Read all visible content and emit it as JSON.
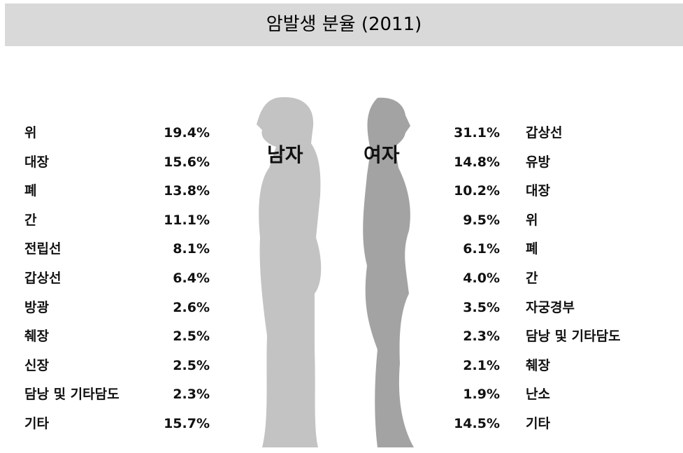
{
  "header": {
    "title": "암발생 분율 (2011)"
  },
  "male": {
    "label": "남자",
    "rows": [
      {
        "name": "위",
        "value": "19.4%"
      },
      {
        "name": "대장",
        "value": "15.6%"
      },
      {
        "name": "폐",
        "value": "13.8%"
      },
      {
        "name": "간",
        "value": "11.1%"
      },
      {
        "name": "전립선",
        "value": "8.1%"
      },
      {
        "name": "갑상선",
        "value": "6.4%"
      },
      {
        "name": "방광",
        "value": "2.6%"
      },
      {
        "name": "췌장",
        "value": "2.5%"
      },
      {
        "name": "신장",
        "value": "2.5%"
      },
      {
        "name": "담낭 및 기타담도",
        "value": "2.3%"
      },
      {
        "name": "기타",
        "value": "15.7%"
      }
    ]
  },
  "female": {
    "label": "여자",
    "rows": [
      {
        "name": "갑상선",
        "value": "31.1%"
      },
      {
        "name": "유방",
        "value": "14.8%"
      },
      {
        "name": "대장",
        "value": "10.2%"
      },
      {
        "name": "위",
        "value": "9.5%"
      },
      {
        "name": "폐",
        "value": "6.1%"
      },
      {
        "name": "간",
        "value": "4.0%"
      },
      {
        "name": "자궁경부",
        "value": "3.5%"
      },
      {
        "name": "담낭 및 기타담도",
        "value": "2.3%"
      },
      {
        "name": "췌장",
        "value": "2.1%"
      },
      {
        "name": "난소",
        "value": "1.9%"
      },
      {
        "name": "기타",
        "value": "14.5%"
      }
    ]
  }
}
